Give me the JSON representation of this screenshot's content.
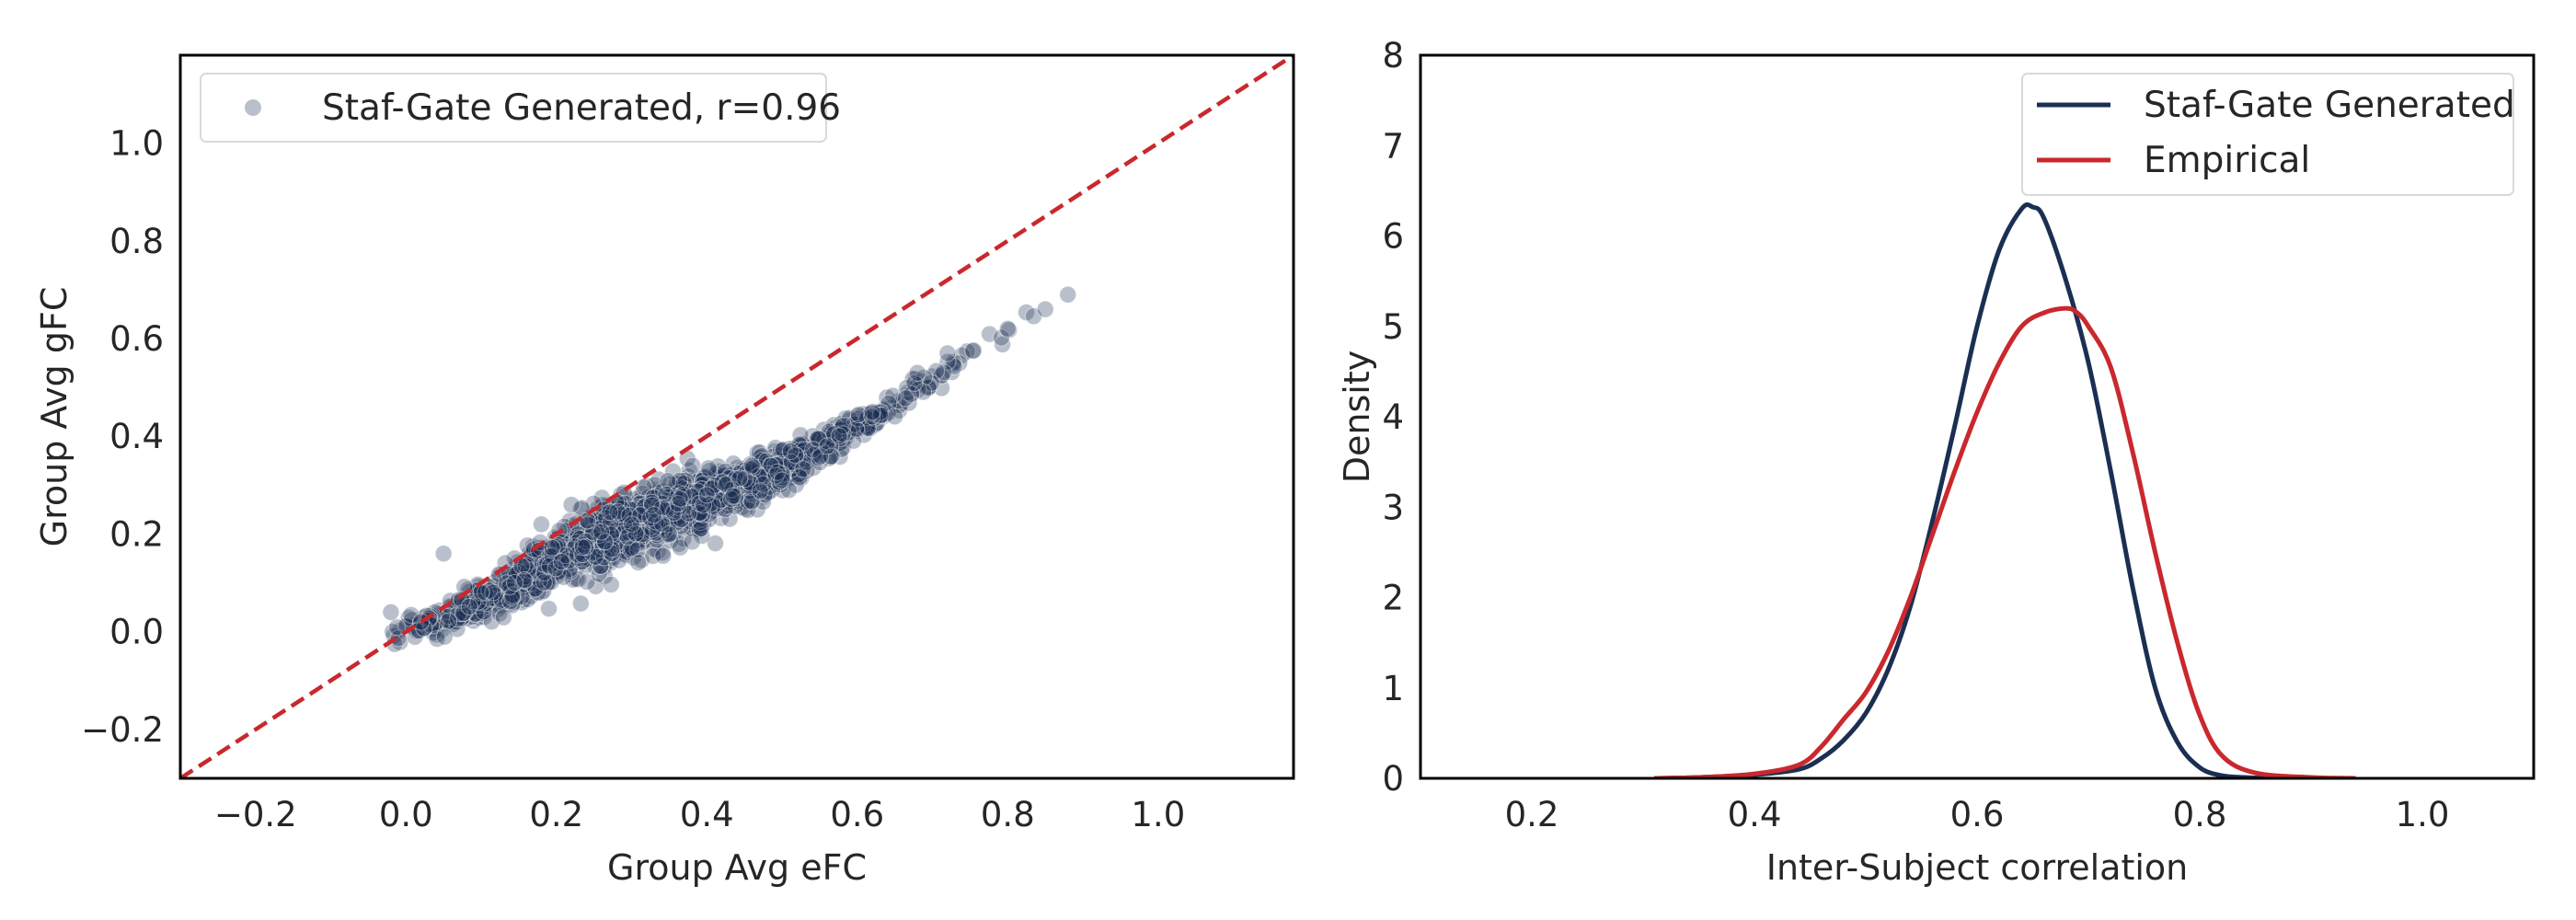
{
  "chart_data": [
    {
      "type": "scatter",
      "xlabel": "Group Avg eFC",
      "ylabel": "Group Avg gFC",
      "xlim": [
        -0.3,
        1.18
      ],
      "ylim": [
        -0.3,
        1.18
      ],
      "x_ticks": [
        -0.2,
        0.0,
        0.2,
        0.4,
        0.6,
        0.8,
        1.0
      ],
      "x_tick_labels": [
        "−0.2",
        "0.0",
        "0.2",
        "0.4",
        "0.6",
        "0.8",
        "1.0"
      ],
      "y_ticks": [
        -0.2,
        0.0,
        0.2,
        0.4,
        0.6,
        0.8,
        1.0
      ],
      "y_tick_labels": [
        "−0.2",
        "0.0",
        "0.2",
        "0.4",
        "0.6",
        "0.8",
        "1.0"
      ],
      "grid": false,
      "legend_position": "top-left",
      "series": [
        {
          "name": "Staf-Gate Generated, r=0.96",
          "color": "#1b2f52",
          "trend": {
            "x_range": [
              -0.02,
              0.88
            ],
            "fit_y": [
              0.0,
              0.02,
              0.08,
              0.14,
              0.19,
              0.23,
              0.27,
              0.31,
              0.36,
              0.42,
              0.49,
              0.56,
              0.63,
              0.69
            ]
          },
          "sample_points": [
            [
              -0.02,
              0.04
            ],
            [
              0.02,
              0.02
            ],
            [
              0.05,
              0.16
            ],
            [
              0.1,
              0.08
            ],
            [
              0.18,
              0.22
            ],
            [
              0.22,
              0.26
            ],
            [
              0.3,
              0.22
            ],
            [
              0.35,
              0.2
            ],
            [
              0.4,
              0.28
            ],
            [
              0.46,
              0.34
            ],
            [
              0.5,
              0.31
            ],
            [
              0.56,
              0.38
            ],
            [
              0.62,
              0.45
            ],
            [
              0.68,
              0.53
            ],
            [
              0.72,
              0.57
            ],
            [
              0.8,
              0.62
            ],
            [
              0.85,
              0.66
            ],
            [
              0.88,
              0.69
            ]
          ]
        }
      ],
      "reference_line": {
        "name": "identity",
        "x": [
          -0.3,
          1.18
        ],
        "y": [
          -0.3,
          1.18
        ],
        "color": "#c9282d",
        "style": "dashed"
      }
    },
    {
      "type": "line",
      "xlabel": "Inter-Subject correlation",
      "ylabel": "Density",
      "xlim": [
        0.1,
        1.1
      ],
      "ylim": [
        0,
        8
      ],
      "x_ticks": [
        0.2,
        0.4,
        0.6,
        0.8,
        1.0
      ],
      "x_tick_labels": [
        "0.2",
        "0.4",
        "0.6",
        "0.8",
        "1.0"
      ],
      "y_ticks": [
        0,
        1,
        2,
        3,
        4,
        5,
        6,
        7,
        8
      ],
      "y_tick_labels": [
        "0",
        "1",
        "2",
        "3",
        "4",
        "5",
        "6",
        "7",
        "8"
      ],
      "grid": false,
      "legend_position": "top-right",
      "series": [
        {
          "name": "Staf-Gate Generated",
          "color": "#1b2f52",
          "x": [
            0.31,
            0.35,
            0.4,
            0.44,
            0.46,
            0.48,
            0.5,
            0.52,
            0.54,
            0.56,
            0.58,
            0.6,
            0.62,
            0.64,
            0.65,
            0.66,
            0.68,
            0.7,
            0.72,
            0.74,
            0.76,
            0.78,
            0.8,
            0.82,
            0.84,
            0.86
          ],
          "y": [
            0.0,
            0.01,
            0.04,
            0.1,
            0.22,
            0.42,
            0.72,
            1.2,
            1.9,
            2.85,
            3.9,
            5.0,
            5.85,
            6.3,
            6.32,
            6.2,
            5.5,
            4.6,
            3.4,
            2.1,
            1.0,
            0.4,
            0.12,
            0.03,
            0.01,
            0.0
          ]
        },
        {
          "name": "Empirical",
          "color": "#c9282d",
          "x": [
            0.31,
            0.35,
            0.4,
            0.44,
            0.46,
            0.48,
            0.5,
            0.52,
            0.54,
            0.56,
            0.58,
            0.6,
            0.62,
            0.64,
            0.66,
            0.68,
            0.69,
            0.7,
            0.72,
            0.74,
            0.76,
            0.78,
            0.8,
            0.82,
            0.85,
            0.9,
            0.94
          ],
          "y": [
            0.0,
            0.01,
            0.05,
            0.15,
            0.35,
            0.65,
            0.95,
            1.4,
            2.0,
            2.7,
            3.4,
            4.05,
            4.6,
            5.0,
            5.15,
            5.2,
            5.15,
            5.0,
            4.55,
            3.6,
            2.5,
            1.5,
            0.7,
            0.25,
            0.06,
            0.01,
            0.0
          ]
        }
      ]
    }
  ]
}
